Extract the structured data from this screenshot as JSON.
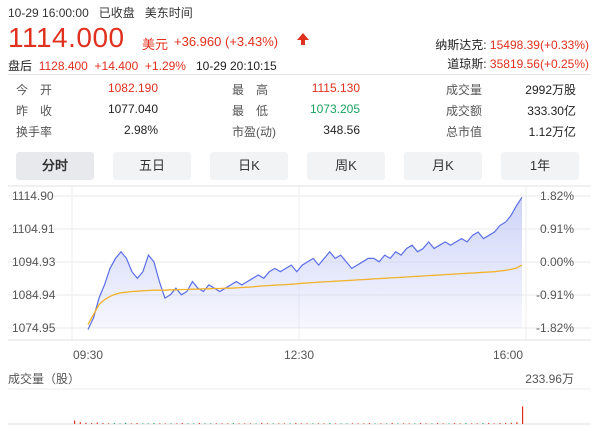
{
  "header": {
    "datetime": "10-29 16:00:00",
    "market_status": "已收盘",
    "timezone": "美东时间"
  },
  "quote": {
    "price": "1114.000",
    "currency": "美元",
    "change": "+36.960",
    "change_pct": "(+3.43%)",
    "arrow_icon": "up-arrow-icon"
  },
  "after_hours": {
    "label": "盘后",
    "price": "1128.400",
    "change": "+14.400",
    "change_pct": "+1.29%",
    "time": "10-29 20:10:15"
  },
  "indices": [
    {
      "name": "纳斯达克:",
      "value": "15498.39(+0.33%)"
    },
    {
      "name": "道琼斯:",
      "value": "35819.56(+0.25%)"
    }
  ],
  "stats": {
    "open_label": "今　开",
    "open": "1082.190",
    "prev_close_label": "昨　收",
    "prev_close": "1077.040",
    "turnover_label": "换手率",
    "turnover": "2.98%",
    "high_label": "最　高",
    "high": "1115.130",
    "low_label": "最　低",
    "low": "1073.205",
    "pe_label": "市盈(动)",
    "pe": "348.56",
    "volume_label": "成交量",
    "volume": "2992万股",
    "amount_label": "成交额",
    "amount": "333.30亿",
    "market_cap_label": "总市值",
    "market_cap": "1.12万亿"
  },
  "tabs": [
    {
      "label": "分时",
      "active": true
    },
    {
      "label": "五日",
      "active": false
    },
    {
      "label": "日K",
      "active": false
    },
    {
      "label": "周K",
      "active": false
    },
    {
      "label": "月K",
      "active": false
    },
    {
      "label": "1年",
      "active": false
    }
  ],
  "colors": {
    "up": "#e0301e",
    "down": "#1aa260",
    "price_line": "#5b6ee8",
    "avg_line": "#f2b229",
    "area_fill": "#c9cff7"
  },
  "chart_data": {
    "type": "line",
    "y_left_ticks": [
      "1114.90",
      "1104.91",
      "1094.93",
      "1084.94",
      "1074.95"
    ],
    "y_right_ticks": [
      "1.82%",
      "0.91%",
      "0.00%",
      "-0.91%",
      "-1.82%"
    ],
    "x_ticks": [
      "09:30",
      "12:30",
      "16:00"
    ],
    "ylim": [
      1074.95,
      1114.9
    ],
    "grid": true,
    "series": [
      {
        "values": [
          1074.5,
          1078,
          1084,
          1088,
          1093,
          1096,
          1098,
          1096,
          1092,
          1090,
          1092,
          1097,
          1095,
          1089,
          1084,
          1085,
          1087,
          1085,
          1086,
          1089,
          1087,
          1086,
          1088,
          1087,
          1086,
          1087,
          1088,
          1089,
          1088,
          1089,
          1090,
          1091,
          1090,
          1092,
          1093,
          1092,
          1093,
          1094,
          1092,
          1094,
          1095,
          1096,
          1094,
          1096,
          1098,
          1096,
          1097,
          1095,
          1093,
          1094,
          1095,
          1096,
          1096,
          1095,
          1097,
          1096,
          1098,
          1097,
          1099,
          1100,
          1098,
          1099,
          1101,
          1099,
          1100,
          1101,
          1100,
          1101,
          1102,
          1101,
          1103,
          1104,
          1102,
          1103,
          1104,
          1106,
          1107,
          1109,
          1112,
          1114.5
        ]
      },
      {
        "values": [
          1076,
          1079,
          1082,
          1083.5,
          1084.5,
          1085.2,
          1085.6,
          1085.8,
          1086,
          1086.1,
          1086.2,
          1086.3,
          1086.4,
          1086.4,
          1086.4,
          1086.5,
          1086.5,
          1086.6,
          1086.6,
          1086.7,
          1086.7,
          1086.8,
          1086.8,
          1086.9,
          1086.9,
          1087,
          1087,
          1087.1,
          1087.2,
          1087.3,
          1087.4,
          1087.6,
          1087.7,
          1087.8,
          1087.9,
          1088,
          1088.1,
          1088.2,
          1088.3,
          1088.5,
          1088.6,
          1088.7,
          1088.8,
          1088.9,
          1089,
          1089.1,
          1089.2,
          1089.3,
          1089.4,
          1089.5,
          1089.6,
          1089.7,
          1089.8,
          1089.9,
          1090,
          1090.1,
          1090.2,
          1090.3,
          1090.4,
          1090.5,
          1090.6,
          1090.7,
          1090.8,
          1090.9,
          1091,
          1091.1,
          1091.2,
          1091.3,
          1091.4,
          1091.5,
          1091.6,
          1091.7,
          1091.8,
          1091.9,
          1092,
          1092.2,
          1092.4,
          1092.7,
          1093.1,
          1094
        ]
      }
    ]
  },
  "volume_chart": {
    "label": "成交量（股）",
    "max_label": "233.96万",
    "max_value": 233.96,
    "bars": [
      12,
      6,
      4,
      3,
      5,
      3,
      2,
      3,
      2,
      4,
      2,
      3,
      2,
      2,
      3,
      2,
      2,
      1,
      2,
      3,
      2,
      2,
      3,
      2,
      2,
      1,
      2,
      2,
      3,
      2,
      1,
      2,
      2,
      3,
      2,
      2,
      1,
      2,
      2,
      3,
      2,
      2,
      2,
      1,
      2,
      3,
      2,
      2,
      2,
      1,
      2,
      2,
      3,
      2,
      2,
      2,
      3,
      2,
      2,
      2,
      2,
      3,
      2,
      2,
      3,
      2,
      2,
      3,
      2,
      3,
      2,
      2,
      3,
      3,
      2,
      3,
      3,
      4,
      6,
      60
    ]
  }
}
